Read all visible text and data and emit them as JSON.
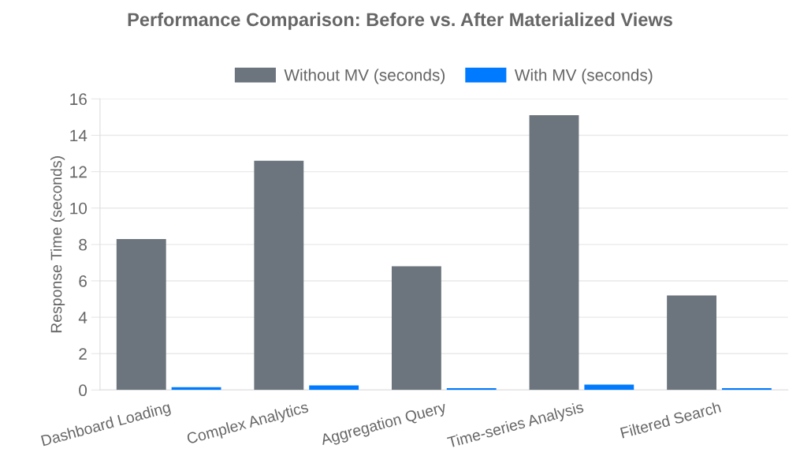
{
  "chart_data": {
    "type": "bar",
    "title": "Performance Comparison: Before vs. After Materialized Views",
    "ylabel": "Response Time (seconds)",
    "categories": [
      "Dashboard Loading",
      "Complex Analytics",
      "Aggregation Query",
      "Time-series Analysis",
      "Filtered Search"
    ],
    "series": [
      {
        "name": "Without MV (seconds)",
        "color": "#6c757d",
        "values": [
          8.3,
          12.6,
          6.8,
          15.1,
          5.2
        ]
      },
      {
        "name": "With MV (seconds)",
        "color": "#007bff",
        "values": [
          0.15,
          0.25,
          0.1,
          0.3,
          0.1
        ]
      }
    ],
    "ylim": [
      0,
      16
    ],
    "yticks": [
      0,
      2,
      4,
      6,
      8,
      10,
      12,
      14,
      16
    ],
    "grid": "y",
    "legend": "top"
  }
}
